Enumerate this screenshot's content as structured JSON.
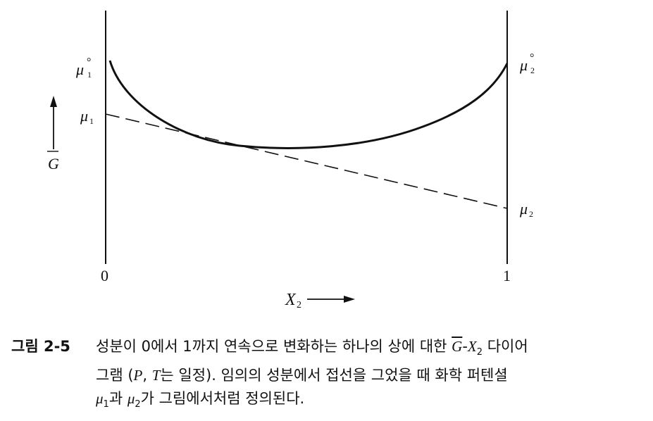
{
  "figure": {
    "labels": {
      "mu1_pure": "μ",
      "mu1_pure_sup": "°",
      "mu1_pure_sub": "1",
      "mu2_pure": "μ",
      "mu2_pure_sup": "°",
      "mu2_pure_sub": "2",
      "mu1": "μ",
      "mu1_sub": "1",
      "mu2": "μ",
      "mu2_sub": "2",
      "g_axis": "G",
      "x_axis": "X",
      "x_axis_sub": "2",
      "tick_zero": "0",
      "tick_one": "1"
    }
  },
  "caption": {
    "number": "그림 2-5",
    "line1_a": "성분이 0에서 1까지 연속으로 변화하는 하나의 상에 대한 ",
    "line1_g": "G",
    "line1_dash": "-",
    "line1_x": "X",
    "line1_x_sub": "2",
    "line1_b": " 다이어",
    "line2_a": "그램 (",
    "line2_p": "P",
    "line2_comma": ",  ",
    "line2_t": "T",
    "line2_b": "는 일정). 임의의 성분에서 접선을 그었을 때 화학 퍼텐셜",
    "line3_mu1": "μ",
    "line3_mu1_sub": "1",
    "line3_a": "과 ",
    "line3_mu2": "μ",
    "line3_mu2_sub": "2",
    "line3_b": "가 그림에서처럼 정의된다."
  }
}
